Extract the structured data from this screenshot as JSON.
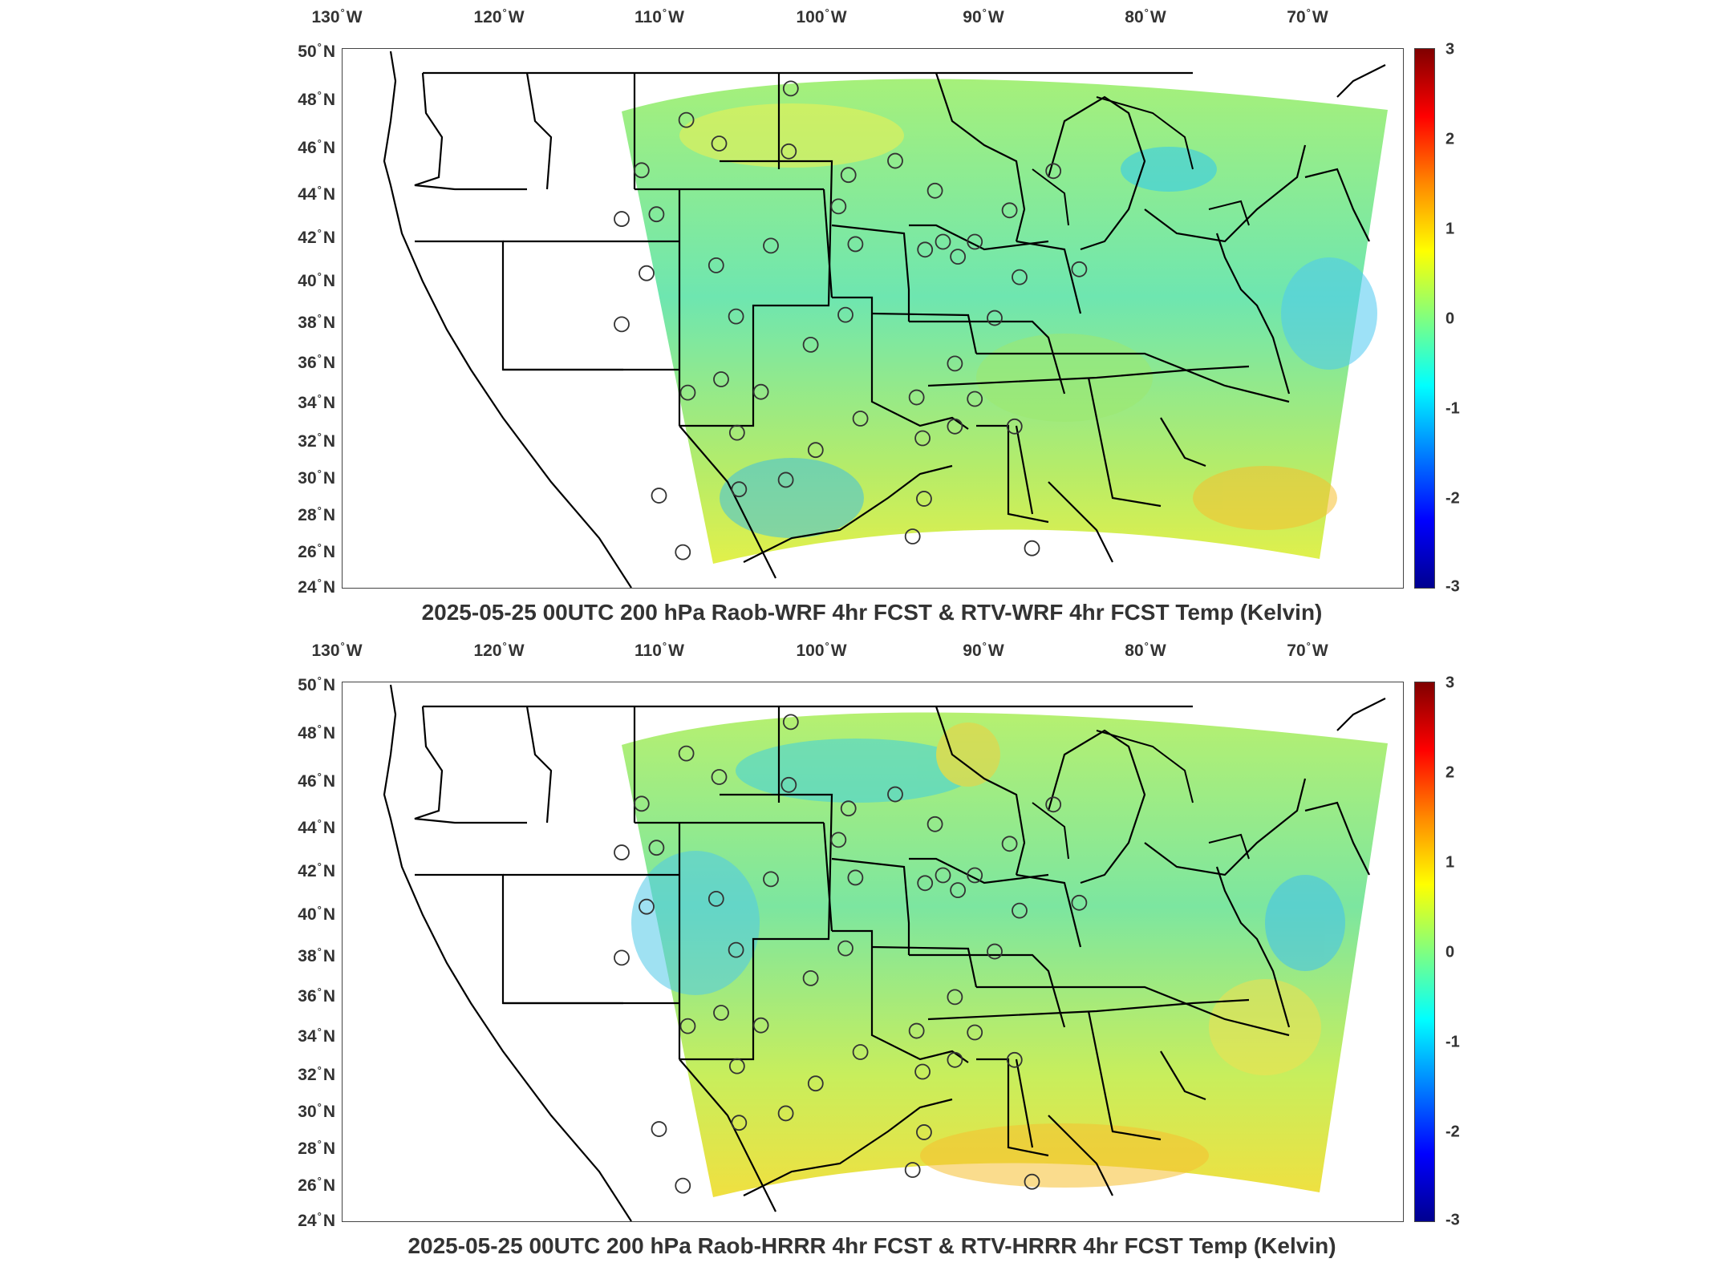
{
  "panels": [
    {
      "title": "2025-05-25 00UTC 200 hPa Raob-WRF 4hr FCST & RTV-WRF 4hr FCST Temp (Kelvin)"
    },
    {
      "title": "2025-05-25 00UTC 200 hPa Raob-HRRR 4hr FCST & RTV-HRRR 4hr FCST Temp (Kelvin)"
    }
  ],
  "axes": {
    "lon_labels": [
      {
        "value": "130",
        "hemi": "W"
      },
      {
        "value": "120",
        "hemi": "W"
      },
      {
        "value": "110",
        "hemi": "W"
      },
      {
        "value": "100",
        "hemi": "W"
      },
      {
        "value": "90",
        "hemi": "W"
      },
      {
        "value": "80",
        "hemi": "W"
      },
      {
        "value": "70",
        "hemi": "W"
      }
    ],
    "lat_labels": [
      {
        "value": "50",
        "hemi": "N"
      },
      {
        "value": "48",
        "hemi": "N"
      },
      {
        "value": "46",
        "hemi": "N"
      },
      {
        "value": "44",
        "hemi": "N"
      },
      {
        "value": "42",
        "hemi": "N"
      },
      {
        "value": "40",
        "hemi": "N"
      },
      {
        "value": "38",
        "hemi": "N"
      },
      {
        "value": "36",
        "hemi": "N"
      },
      {
        "value": "34",
        "hemi": "N"
      },
      {
        "value": "32",
        "hemi": "N"
      },
      {
        "value": "30",
        "hemi": "N"
      },
      {
        "value": "28",
        "hemi": "N"
      },
      {
        "value": "26",
        "hemi": "N"
      },
      {
        "value": "24",
        "hemi": "N"
      }
    ],
    "degree_symbol": "°"
  },
  "colorbar": {
    "ticks": [
      "3",
      "2",
      "1",
      "0",
      "-1",
      "-2",
      "-3"
    ],
    "range": [
      -3,
      3
    ],
    "colormap": "jet"
  },
  "colors": {
    "domain_fill": "#7fe6a6",
    "state_lines": "#000000",
    "station_outline": "#333333"
  }
}
